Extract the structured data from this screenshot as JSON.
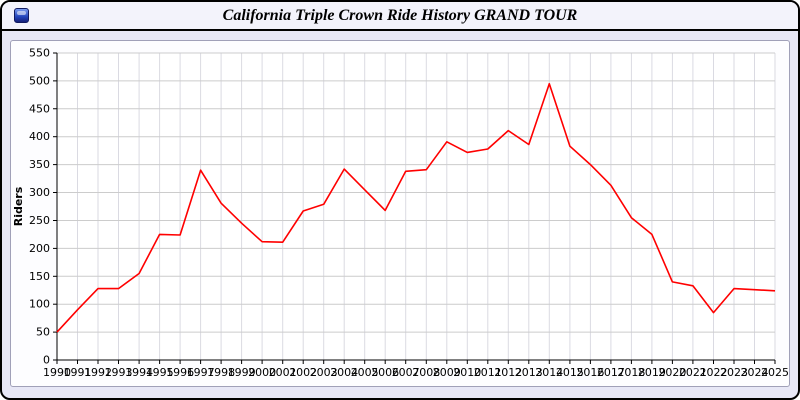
{
  "window": {
    "title": "California Triple Crown Ride History GRAND TOUR",
    "icon": "blue-app-icon"
  },
  "chart_data": {
    "type": "line",
    "title": "California Triple Crown Ride History GRAND TOUR",
    "xlabel": "",
    "ylabel": "Riders",
    "ylim": [
      0,
      550
    ],
    "ytick": 50,
    "grid": true,
    "legend_position": "none",
    "line_color": "#ff0000",
    "x": [
      1990,
      1991,
      1992,
      1993,
      1994,
      1995,
      1996,
      1997,
      1998,
      1999,
      2000,
      2001,
      2002,
      2003,
      2004,
      2005,
      2006,
      2007,
      2008,
      2009,
      2010,
      2011,
      2012,
      2013,
      2014,
      2015,
      2016,
      2017,
      2018,
      2019,
      2020,
      2021,
      2022,
      2023,
      2024,
      2025
    ],
    "values": [
      50,
      90,
      128,
      128,
      155,
      225,
      224,
      340,
      281,
      245,
      212,
      211,
      267,
      279,
      342,
      305,
      268,
      338,
      341,
      391,
      372,
      378,
      411,
      386,
      495,
      383,
      350,
      313,
      255,
      225,
      140,
      133,
      85,
      128,
      126,
      124
    ]
  }
}
